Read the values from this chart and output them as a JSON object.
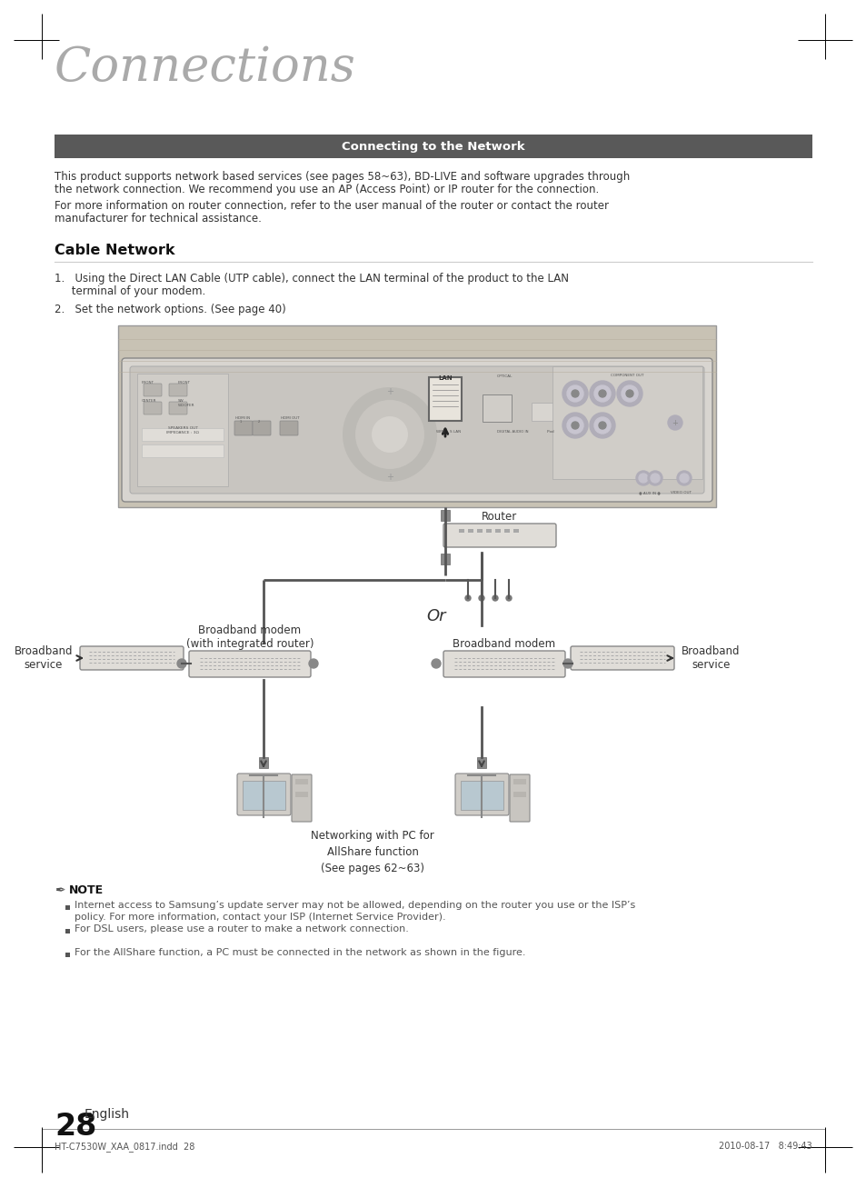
{
  "page_bg": "#ffffff",
  "title": "Connections",
  "section_header": "Connecting to the Network",
  "section_header_bg": "#595959",
  "section_header_color": "#ffffff",
  "body_text_1a": "This product supports network based services (see pages 58~63), BD-LIVE and software upgrades through",
  "body_text_1b": "the network connection. We recommend you use an AP (Access Point) or IP router for the connection.",
  "body_text_2a": "For more information on router connection, refer to the user manual of the router or contact the router",
  "body_text_2b": "manufacturer for technical assistance.",
  "cable_network_title": "Cable Network",
  "step1a": "1.   Using the Direct LAN Cable (UTP cable), connect the LAN terminal of the product to the LAN",
  "step1b": "     terminal of your modem.",
  "step2": "2.   Set the network options. (See page 40)",
  "note_title": "NOTE",
  "note_bullets": [
    "Internet access to Samsung’s update server may not be allowed, depending on the router you use or the ISP’s\npolicy. For more information, contact your ISP (Internet Service Provider).",
    "For DSL users, please use a router to make a network connection.",
    "For the AllShare function, a PC must be connected in the network as shown in the figure."
  ],
  "page_number": "28",
  "page_number_label": "English",
  "footer_left": "HT-C7530W_XAA_0817.indd  28",
  "footer_right": "2010-08-17   8:49:43",
  "router_label": "Router",
  "broadband_modem_label": "Broadband modem\n(with integrated router)",
  "broadband_service_left_label": "Broadband\nservice",
  "or_label": "Or",
  "broadband_modem_right_label": "Broadband modem",
  "broadband_service_right_label": "Broadband\nservice",
  "networking_label": "Networking with PC for\nAllShare function\n(See pages 62~63)"
}
